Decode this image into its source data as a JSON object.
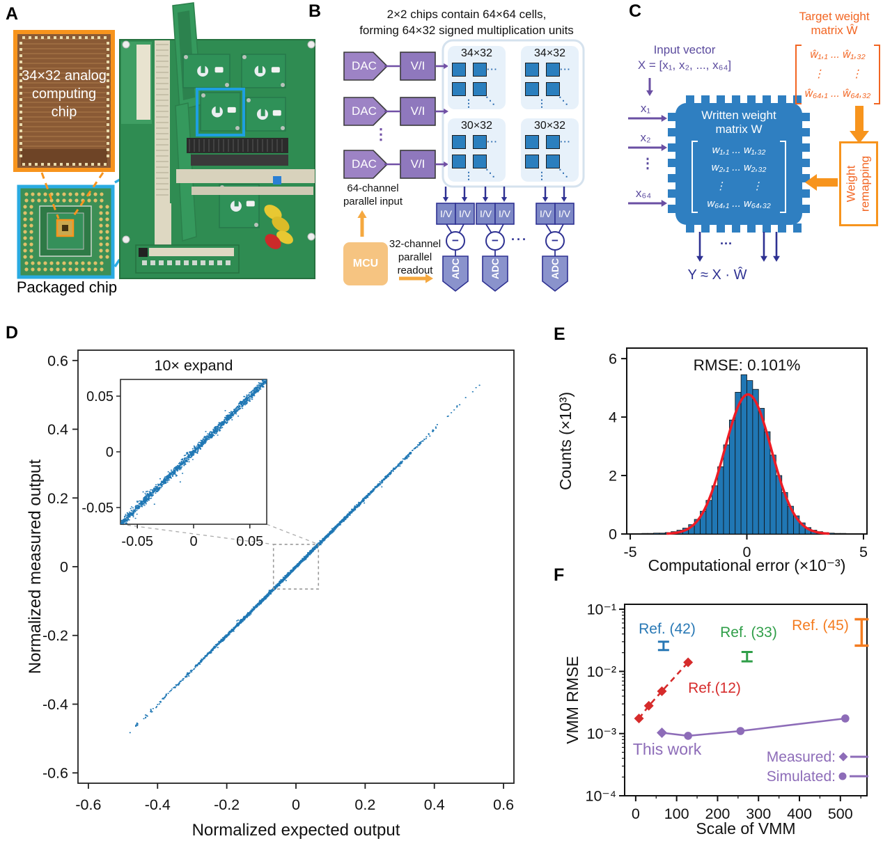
{
  "panels": {
    "a": "A",
    "b": "B",
    "c": "C",
    "d": "D",
    "e": "E",
    "f": "F"
  },
  "panelA": {
    "chip_caption": "34×32 analog computing chip",
    "package_caption": "Packaged chip",
    "accent_orange": "#f7941d",
    "accent_blue": "#29abe2"
  },
  "panelB": {
    "title": "2×2 chips contain 64×64 cells,\nforming 64×32 signed multiplication units",
    "dac_label": "DAC",
    "vi_label": "V/I",
    "iv_label": "I/V",
    "adc_label": "ADC",
    "mcu_label": "MCU",
    "minus": "−",
    "dots_h": "···",
    "dots_v": "⋮",
    "dots_diag": "⋱",
    "dac_column_dots": "⋮",
    "readout_dots": "···",
    "chip_labels": [
      "34×32",
      "34×32",
      "30×32",
      "30×32"
    ],
    "input_caption": "64-channel\nparallel input",
    "readout_caption": "32-channel\nparallel\nreadout"
  },
  "panelC": {
    "input_vector_title": "Input vector",
    "input_vector_eq": "X = [x₁, x₂, ..., x₆₄]",
    "x_labels": [
      "x₁",
      "x₂",
      "⋮",
      "x₆₄"
    ],
    "target_title": "Target weight\nmatrix Ŵ",
    "target_matrix_rows": [
      "ŵ₁,₁ ... ŵ₁,₃₂",
      "⋮         ⋮",
      "ŵ₆₄,₁ ... ŵ₆₄,₃₂"
    ],
    "written_title": "Written weight\nmatrix W",
    "written_matrix_rows": [
      "w₁,₁ ... w₁,₃₂",
      "w₂,₁ ... w₂,₃₂",
      "⋮         ⋮",
      "w₆₄,₁ ... w₆₄,₃₂"
    ],
    "remap_label": "Weight\nremapping",
    "output_eq": "Y ≈ X · Ŵ",
    "output_dots": "···",
    "chip_color": "#2f7fc1",
    "purple": "#5b4b9e",
    "orange": "#f26522"
  },
  "chart_data": [
    {
      "id": "D",
      "type": "scatter",
      "xlabel": "Normalized expected output",
      "ylabel": "Normalized measured output",
      "xlim": [
        -0.63,
        0.63
      ],
      "ylim": [
        -0.63,
        0.63
      ],
      "xticks": [
        -0.6,
        -0.4,
        -0.2,
        0,
        0.2,
        0.4,
        0.6
      ],
      "yticks": [
        0.6,
        0.4,
        0.2,
        0,
        -0.2,
        -0.4,
        -0.6
      ],
      "point_color": "#1f77b4",
      "relation": "y equals x plus small noise (identity line scatter)",
      "x_sd": 0.16,
      "noise_sd": 0.0022,
      "n_points": 2800,
      "extreme_points": [
        [
          -0.48,
          -0.483
        ],
        [
          -0.46,
          -0.455
        ],
        [
          -0.43,
          -0.435
        ],
        [
          -0.42,
          -0.415
        ],
        [
          -0.31,
          -0.318
        ],
        [
          0.3,
          0.293
        ],
        [
          0.49,
          0.492
        ],
        [
          0.52,
          0.521
        ],
        [
          0.53,
          0.528
        ]
      ],
      "zoom_box": [
        -0.065,
        0.065
      ],
      "inset": {
        "title": "10× expand",
        "xlim": [
          -0.065,
          0.065
        ],
        "ylim": [
          -0.065,
          0.065
        ],
        "xticks": [
          -0.05,
          0,
          0.05
        ],
        "yticks": [
          0.05,
          0,
          -0.05
        ],
        "n_points": 1600,
        "noise_sd": 0.0018,
        "outliers": [
          [
            -0.035,
            -0.047
          ],
          [
            -0.012,
            -0.027
          ],
          [
            0.028,
            0.037
          ],
          [
            -0.045,
            -0.036
          ]
        ]
      }
    },
    {
      "id": "E",
      "type": "histogram",
      "title": "RMSE: 0.101%",
      "xlabel": "Computational error (×10⁻³)",
      "ylabel": "Counts (×10³)",
      "xlim": [
        -5.15,
        5.15
      ],
      "ylim": [
        0,
        6.36
      ],
      "xticks": [
        -5,
        0,
        5
      ],
      "yticks": [
        0,
        2,
        4,
        6
      ],
      "bar_color": "#2077b4",
      "bin_start": -4.5,
      "bin_width": 0.25,
      "counts": [
        0.02,
        0.02,
        0.03,
        0.03,
        0.05,
        0.08,
        0.13,
        0.2,
        0.32,
        0.5,
        0.78,
        1.15,
        1.65,
        2.3,
        3.05,
        3.9,
        4.85,
        5.45,
        5.25,
        4.95,
        4.3,
        3.5,
        2.7,
        2.0,
        1.42,
        0.95,
        0.62,
        0.38,
        0.22,
        0.13,
        0.08,
        0.05,
        0.03,
        0.02,
        0.02
      ],
      "fit": {
        "type": "gaussian",
        "amplitude": 4.78,
        "mean": 0.05,
        "sigma": 1.0,
        "color": "#ee1c25",
        "range": [
          -3.4,
          3.6
        ]
      }
    },
    {
      "id": "F",
      "type": "line",
      "xlabel": "Scale of VMM",
      "ylabel": "VMM RMSE",
      "xlim": [
        -27,
        565
      ],
      "ylim_log": [
        0.0001,
        0.12
      ],
      "xticks": [
        0,
        100,
        200,
        300,
        400,
        500
      ],
      "ytick_values": [
        0.0001,
        0.001,
        0.01,
        0.1
      ],
      "ytick_labels": [
        "10⁻⁴",
        "10⁻³",
        "10⁻²",
        "10⁻¹"
      ],
      "series": [
        {
          "name": "Ref.(12)",
          "color": "#d62b2b",
          "style": "dashed",
          "marker": "diamond",
          "points": [
            [
              8,
              0.00175
            ],
            [
              32,
              0.0028
            ],
            [
              64,
              0.0048
            ],
            [
              128,
              0.014
            ]
          ]
        },
        {
          "name": "This work",
          "color": "#8d6cb8",
          "style": "solid",
          "points": [
            [
              64,
              0.00103
            ],
            [
              128,
              0.00092
            ],
            [
              256,
              0.0011
            ],
            [
              512,
              0.00175
            ]
          ],
          "measured_points": [
            [
              64,
              0.00103
            ]
          ],
          "simulated_points": [
            [
              128,
              0.00092
            ],
            [
              256,
              0.0011
            ],
            [
              512,
              0.00175
            ]
          ]
        }
      ],
      "errorbars": [
        {
          "name": "Ref. (42)",
          "color": "#2878b5",
          "x": 68,
          "lo": 0.022,
          "hi": 0.03
        },
        {
          "name": "Ref. (33)",
          "color": "#2f9e48",
          "x": 272,
          "lo": 0.0145,
          "hi": 0.0205
        },
        {
          "name": "Ref. (45)",
          "color": "#f47c20",
          "x": 552,
          "lo": 0.026,
          "hi": 0.069
        }
      ],
      "legend": {
        "measured_label": "Measured:",
        "simulated_label": "Simulated:"
      }
    }
  ]
}
